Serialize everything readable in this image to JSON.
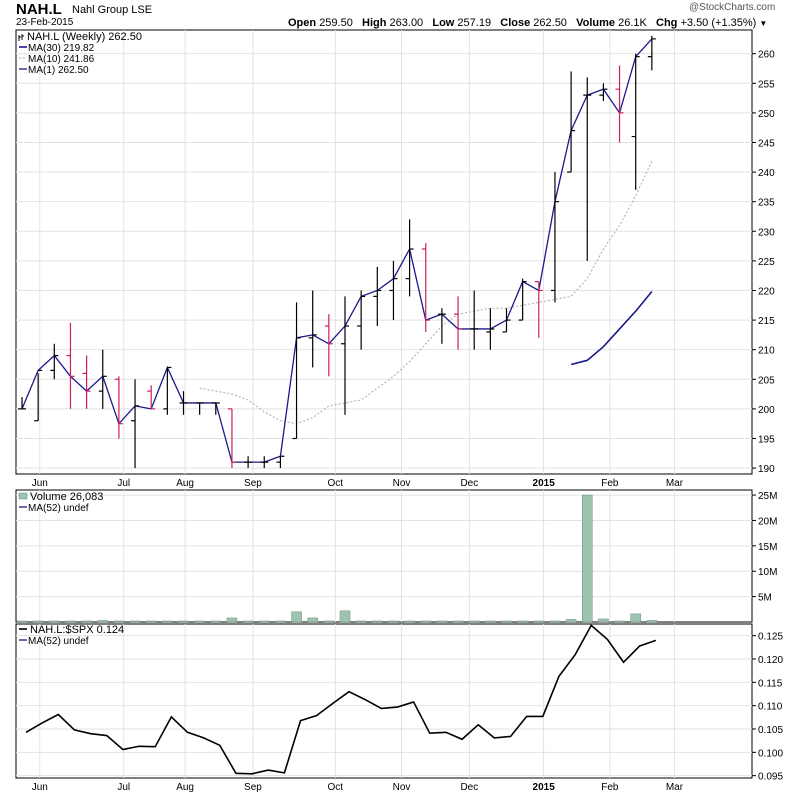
{
  "header": {
    "symbol": "NAH.L",
    "company": "Nahl Group LSE",
    "date": "23-Feb-2015",
    "watermark": "@StockCharts.com",
    "open_label": "Open",
    "open": "259.50",
    "high_label": "High",
    "high": "263.00",
    "low_label": "Low",
    "low": "257.19",
    "close_label": "Close",
    "close": "262.50",
    "volume_label": "Volume",
    "volume": "26.1K",
    "chg_label": "Chg",
    "chg": "+3.50 (+1.35%)"
  },
  "legends": {
    "price": [
      "NAH.L (Weekly) 262.50",
      "MA(30) 219.82",
      "MA(10) 241.86",
      "MA(1) 262.50"
    ],
    "volume": [
      "Volume 26,083",
      "MA(52) undef"
    ],
    "ratio": [
      "NAH.L:$SPX 0.124",
      "MA(52) undef"
    ]
  },
  "colors": {
    "up": "#000000",
    "down": "#cc1f5a",
    "ma1": "#1a1a8c",
    "ma30": "#1a1a8c",
    "ma10": "#aaaaaa",
    "volume_bar": "#9ec3b0",
    "volume_edge": "#6a8f7a",
    "grid": "#e2e2e2"
  },
  "x_labels": [
    "Jun",
    "Jul",
    "Aug",
    "Sep",
    "Oct",
    "Nov",
    "Dec",
    "2015",
    "Feb",
    "Mar"
  ],
  "chart_data": [
    {
      "type": "ohlc",
      "title": "NAH.L (Weekly)",
      "ylim": [
        189,
        264
      ],
      "yticks": [
        190,
        195,
        200,
        205,
        210,
        215,
        220,
        225,
        230,
        235,
        240,
        245,
        250,
        255,
        260
      ],
      "bars": [
        {
          "o": 200,
          "h": 202,
          "l": 200,
          "c": 200
        },
        {
          "o": 198,
          "h": 206,
          "l": 198,
          "c": 206.5
        },
        {
          "o": 206.5,
          "h": 211,
          "l": 205,
          "c": 209
        },
        {
          "o": 209,
          "h": 214.5,
          "l": 200,
          "c": 205.5
        },
        {
          "o": 206,
          "h": 209,
          "l": 200,
          "c": 203
        },
        {
          "o": 203,
          "h": 210,
          "l": 200,
          "c": 205.5
        },
        {
          "o": 205,
          "h": 205.5,
          "l": 195,
          "c": 197.5
        },
        {
          "o": 198,
          "h": 205,
          "l": 190,
          "c": 200.5
        },
        {
          "o": 203,
          "h": 204,
          "l": 200,
          "c": 200
        },
        {
          "o": 200,
          "h": 207,
          "l": 199,
          "c": 207
        },
        {
          "o": 201,
          "h": 203,
          "l": 199,
          "c": 201
        },
        {
          "o": 201,
          "h": 201,
          "l": 199,
          "c": 201
        },
        {
          "o": 201,
          "h": 201,
          "l": 199,
          "c": 201
        },
        {
          "o": 200,
          "h": 200,
          "l": 190,
          "c": 191
        },
        {
          "o": 191,
          "h": 192,
          "l": 190,
          "c": 191
        },
        {
          "o": 191,
          "h": 192,
          "l": 190,
          "c": 191
        },
        {
          "o": 191,
          "h": 192,
          "l": 190,
          "c": 192
        },
        {
          "o": 195,
          "h": 218,
          "l": 195,
          "c": 212
        },
        {
          "o": 212,
          "h": 220,
          "l": 207,
          "c": 212.5
        },
        {
          "o": 214,
          "h": 216,
          "l": 205.5,
          "c": 211
        },
        {
          "o": 211,
          "h": 219,
          "l": 199,
          "c": 214
        },
        {
          "o": 214,
          "h": 220,
          "l": 210,
          "c": 219
        },
        {
          "o": 219,
          "h": 224,
          "l": 214,
          "c": 220
        },
        {
          "o": 220,
          "h": 225,
          "l": 215,
          "c": 222
        },
        {
          "o": 222,
          "h": 232,
          "l": 219,
          "c": 227
        },
        {
          "o": 227,
          "h": 228,
          "l": 213,
          "c": 215
        },
        {
          "o": 216,
          "h": 217,
          "l": 211,
          "c": 216
        },
        {
          "o": 216,
          "h": 219,
          "l": 210,
          "c": 213.5
        },
        {
          "o": 213.5,
          "h": 220,
          "l": 210,
          "c": 213.5
        },
        {
          "o": 213,
          "h": 217,
          "l": 210,
          "c": 213.5
        },
        {
          "o": 213,
          "h": 217,
          "l": 213,
          "c": 215
        },
        {
          "o": 215,
          "h": 222,
          "l": 215,
          "c": 221.5
        },
        {
          "o": 221.5,
          "h": 221.5,
          "l": 212,
          "c": 220
        },
        {
          "o": 220,
          "h": 240,
          "l": 218,
          "c": 235
        },
        {
          "o": 240,
          "h": 257,
          "l": 240,
          "c": 247
        },
        {
          "o": 253,
          "h": 256,
          "l": 225,
          "c": 253
        },
        {
          "o": 253,
          "h": 255,
          "l": 252,
          "c": 254
        },
        {
          "o": 254,
          "h": 258,
          "l": 245,
          "c": 250
        },
        {
          "o": 246,
          "h": 260,
          "l": 237,
          "c": 259.5
        },
        {
          "o": 259.5,
          "h": 263,
          "l": 257.19,
          "c": 262.5
        }
      ],
      "ma30": [
        207.5,
        208.2,
        210.5,
        213.5,
        216.5,
        219.82
      ],
      "ma10": [
        203.5,
        203,
        202.5,
        201.5,
        199.5,
        198,
        197.5,
        198.5,
        200.5,
        201,
        201.5,
        203.5,
        205.5,
        208,
        211,
        214,
        216,
        216.5,
        217,
        217,
        217.5,
        218,
        218.5,
        219,
        222,
        227,
        231,
        236,
        241.86
      ]
    },
    {
      "type": "bar",
      "title": "Volume",
      "ylim": [
        0,
        26
      ],
      "yticks": [
        5,
        10,
        15,
        20,
        25
      ],
      "ytick_labels": [
        "5M",
        "10M",
        "15M",
        "20M",
        "25M"
      ],
      "values": [
        0.2,
        0.2,
        0.2,
        0.2,
        0.2,
        0.3,
        0.3,
        0.2,
        0.2,
        0.2,
        0.2,
        0.2,
        0.2,
        0.2,
        0.2,
        0.2,
        0.2,
        0.2,
        0.2,
        0.2,
        0.2,
        0.2,
        0.2,
        0.3,
        0.2,
        0.2,
        0.2,
        0.2,
        0.2,
        0.2,
        0.2,
        0.2,
        0.2,
        0.1,
        0.2,
        0.2,
        0.2,
        0.2,
        0.2,
        0.2,
        0.1,
        0.2,
        0.2,
        0.2,
        0.2,
        0.2,
        0.2,
        0.4,
        0.2,
        0.2,
        0.2,
        0.2,
        0.2,
        0.2,
        0.2,
        0.2,
        0.2,
        0.2,
        0.2,
        0.1,
        0.1,
        0.2
      ],
      "volume_weeks": [
        0.2,
        0.2,
        0.2,
        0.2,
        0.2,
        0.3,
        0.2,
        0.2,
        0.2,
        0.2,
        0.2,
        0.2,
        0.2,
        0.2,
        0.2,
        0.2,
        0.2,
        0.2,
        0.2,
        0.2,
        0.2,
        0.2,
        0.2,
        0.2,
        0.2,
        0.2,
        0.2,
        0.2,
        0.2,
        0.2,
        0.2,
        0.2,
        0.2,
        0.2,
        0.2,
        0.2,
        0.2,
        0.2,
        0.2,
        0.2
      ]
    },
    {
      "type": "line",
      "title": "NAH.L:$SPX",
      "ylim": [
        0.0945,
        0.1275
      ],
      "yticks": [
        0.095,
        0.1,
        0.105,
        0.11,
        0.115,
        0.12,
        0.125
      ],
      "ytick_labels": [
        "0.095",
        "0.100",
        "0.105",
        "0.110",
        "0.115",
        "0.120",
        "0.125"
      ],
      "values": [
        0.1043,
        0.1063,
        0.1081,
        0.1048,
        0.104,
        0.1036,
        0.1006,
        0.1013,
        0.1012,
        0.1076,
        0.1043,
        0.1031,
        0.1015,
        0.0955,
        0.0954,
        0.0962,
        0.0956,
        0.1068,
        0.1079,
        0.1105,
        0.113,
        0.1113,
        0.1094,
        0.1097,
        0.1108,
        0.1041,
        0.1043,
        0.1028,
        0.1059,
        0.1031,
        0.1034,
        0.1077,
        0.1077,
        0.1163,
        0.1209,
        0.1272,
        0.1242,
        0.1193,
        0.1228,
        0.124
      ]
    }
  ]
}
